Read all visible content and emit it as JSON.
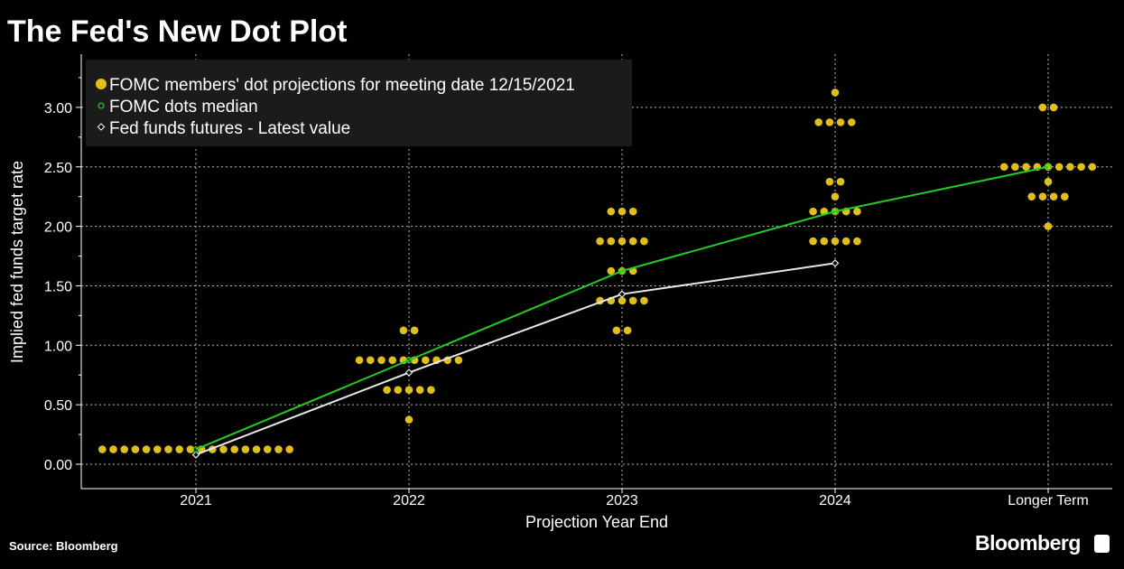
{
  "chart_data": {
    "type": "scatter",
    "title": "The Fed's New Dot Plot",
    "xlabel": "Projection Year End",
    "ylabel": "Implied fed funds target rate",
    "categories": [
      "2021",
      "2022",
      "2023",
      "2024",
      "Longer Term"
    ],
    "ylim": [
      -0.2,
      3.3
    ],
    "yticks": [
      "0.00",
      "0.50",
      "1.00",
      "1.50",
      "2.00",
      "2.50",
      "3.00"
    ],
    "grid": true,
    "legend_position": "top-left",
    "legend": [
      "FOMC members' dot projections for meeting date 12/15/2021",
      "FOMC dots median",
      "Fed funds futures - Latest value"
    ],
    "dots": [
      [
        {
          "rate": 0.125,
          "count": 18
        }
      ],
      [
        {
          "rate": 0.375,
          "count": 1
        },
        {
          "rate": 0.625,
          "count": 5
        },
        {
          "rate": 0.875,
          "count": 10
        },
        {
          "rate": 1.125,
          "count": 2
        }
      ],
      [
        {
          "rate": 1.125,
          "count": 2
        },
        {
          "rate": 1.375,
          "count": 5
        },
        {
          "rate": 1.625,
          "count": 3
        },
        {
          "rate": 1.875,
          "count": 5
        },
        {
          "rate": 2.125,
          "count": 3
        }
      ],
      [
        {
          "rate": 1.875,
          "count": 5
        },
        {
          "rate": 2.125,
          "count": 5
        },
        {
          "rate": 2.25,
          "count": 1
        },
        {
          "rate": 2.375,
          "count": 2
        },
        {
          "rate": 2.875,
          "count": 4
        },
        {
          "rate": 3.125,
          "count": 1
        }
      ],
      [
        {
          "rate": 2.0,
          "count": 1
        },
        {
          "rate": 2.25,
          "count": 4
        },
        {
          "rate": 2.375,
          "count": 1
        },
        {
          "rate": 2.5,
          "count": 9
        },
        {
          "rate": 3.0,
          "count": 2
        }
      ]
    ],
    "series": [
      {
        "name": "FOMC dots median",
        "values": [
          0.125,
          0.875,
          1.625,
          2.125,
          2.5
        ]
      },
      {
        "name": "Fed funds futures - Latest value",
        "values": [
          0.08,
          0.77,
          1.43,
          1.69,
          null
        ]
      }
    ]
  },
  "colors": {
    "dot": "#e0bf1a",
    "median": "#22cc22",
    "futures": "#e8e8e8",
    "legend_bg": "#1b1b1b"
  },
  "footer": {
    "source": "Source: Bloomberg",
    "brand": "Bloomberg"
  }
}
